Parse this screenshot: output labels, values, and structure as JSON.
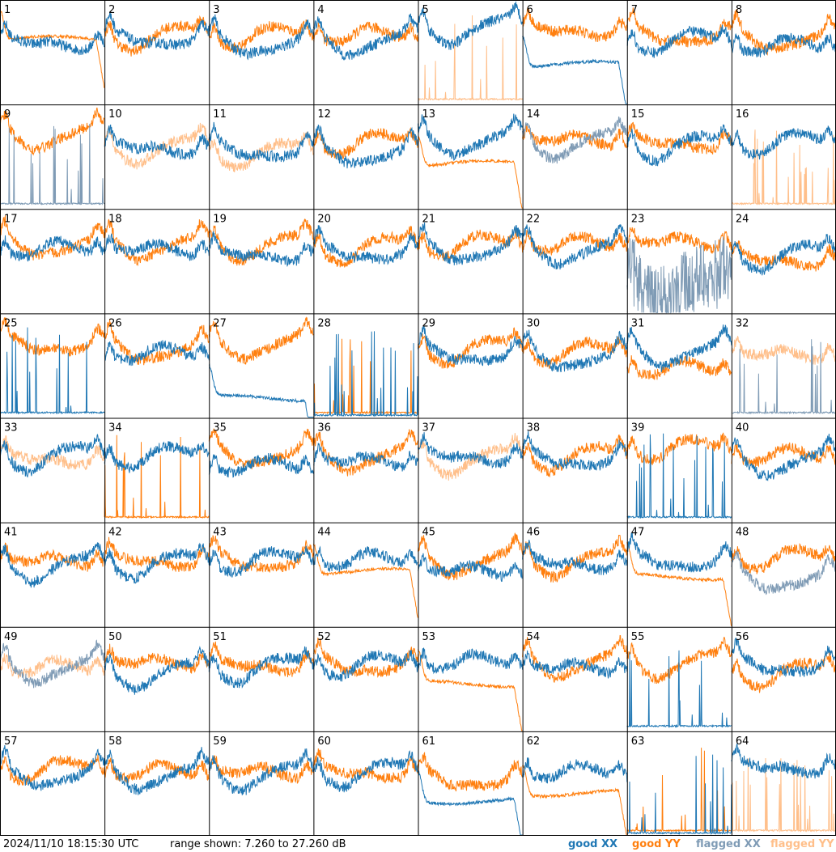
{
  "chart_data": {
    "type": "line",
    "grid": {
      "rows": 8,
      "cols": 8
    },
    "panel_labels": [
      "1",
      "2",
      "3",
      "4",
      "5",
      "6",
      "7",
      "8",
      "9",
      "10",
      "11",
      "12",
      "13",
      "14",
      "15",
      "16",
      "17",
      "18",
      "19",
      "20",
      "21",
      "22",
      "23",
      "24",
      "25",
      "26",
      "27",
      "28",
      "29",
      "30",
      "31",
      "32",
      "33",
      "34",
      "35",
      "36",
      "37",
      "38",
      "39",
      "40",
      "41",
      "42",
      "43",
      "44",
      "45",
      "46",
      "47",
      "48",
      "49",
      "50",
      "51",
      "52",
      "53",
      "54",
      "55",
      "56",
      "57",
      "58",
      "59",
      "60",
      "61",
      "62",
      "63",
      "64"
    ],
    "ylim": [
      7.26,
      27.26
    ],
    "y_unit": "dB",
    "x_points": 240,
    "timestamp": "2024/11/10 18:15:30 UTC",
    "range_text": "range shown: 7.260 to 27.260 dB",
    "legend": [
      {
        "label": "good XX",
        "color": "#1f77b4"
      },
      {
        "label": "good YY",
        "color": "#ff7f0e"
      },
      {
        "label": "flagged XX",
        "color": "#7f9bb5"
      },
      {
        "label": "flagged YY",
        "color": "#ffbf8a"
      }
    ],
    "series_flags": {
      "XX": [
        "good",
        "good",
        "good",
        "good",
        "good",
        "good",
        "good",
        "good",
        "flagged",
        "good",
        "good",
        "good",
        "good",
        "flagged",
        "good",
        "good",
        "good",
        "good",
        "good",
        "good",
        "good",
        "good",
        "flagged",
        "good",
        "good",
        "good",
        "good",
        "good",
        "good",
        "good",
        "good",
        "flagged",
        "good",
        "good",
        "good",
        "good",
        "good",
        "good",
        "good",
        "good",
        "good",
        "good",
        "good",
        "good",
        "good",
        "good",
        "good",
        "flagged",
        "flagged",
        "good",
        "good",
        "good",
        "good",
        "good",
        "good",
        "good",
        "good",
        "good",
        "good",
        "good",
        "good",
        "good",
        "good",
        "good"
      ],
      "YY": [
        "good",
        "good",
        "good",
        "good",
        "flagged",
        "good",
        "good",
        "good",
        "good",
        "flagged",
        "flagged",
        "good",
        "good",
        "good",
        "good",
        "flagged",
        "good",
        "good",
        "good",
        "good",
        "good",
        "good",
        "good",
        "good",
        "good",
        "good",
        "good",
        "good",
        "good",
        "good",
        "good",
        "flagged",
        "flagged",
        "good",
        "good",
        "good",
        "flagged",
        "good",
        "good",
        "good",
        "good",
        "good",
        "good",
        "good",
        "good",
        "good",
        "good",
        "good",
        "flagged",
        "good",
        "good",
        "good",
        "good",
        "good",
        "good",
        "good",
        "good",
        "good",
        "good",
        "good",
        "good",
        "good",
        "good",
        "flagged"
      ]
    },
    "series_shape": {
      "XX": [
        "normal",
        "normal",
        "normal",
        "normal",
        "normal",
        "droop",
        "normal",
        "normal",
        "spiky",
        "normal",
        "normal",
        "normal",
        "normal",
        "normal",
        "normal",
        "normal",
        "normal",
        "normal",
        "normal",
        "normal",
        "normal",
        "normal",
        "noisy",
        "normal",
        "spiky",
        "normal",
        "droop",
        "spiky",
        "normal",
        "normal",
        "normal",
        "spiky",
        "normal",
        "normal",
        "normal",
        "normal",
        "normal",
        "normal",
        "spiky",
        "normal",
        "normal",
        "normal",
        "normal",
        "normal",
        "normal",
        "normal",
        "normal",
        "normal",
        "normal",
        "normal",
        "normal",
        "normal",
        "normal",
        "normal",
        "spiky",
        "normal",
        "normal",
        "normal",
        "normal",
        "normal",
        "droop",
        "normal",
        "spiky",
        "normal"
      ],
      "YY": [
        "droop",
        "normal",
        "normal",
        "normal",
        "spiky",
        "normal",
        "normal",
        "normal",
        "normal",
        "normal",
        "normal",
        "normal",
        "droop",
        "normal",
        "normal",
        "spiky",
        "normal",
        "normal",
        "normal",
        "normal",
        "normal",
        "normal",
        "normal",
        "normal",
        "normal",
        "normal",
        "normal",
        "spiky",
        "normal",
        "normal",
        "normal",
        "normal",
        "normal",
        "spiky",
        "normal",
        "normal",
        "normal",
        "normal",
        "normal",
        "normal",
        "normal",
        "normal",
        "normal",
        "droop",
        "normal",
        "normal",
        "droop",
        "normal",
        "normal",
        "normal",
        "normal",
        "normal",
        "droop",
        "normal",
        "normal",
        "normal",
        "normal",
        "normal",
        "normal",
        "normal",
        "normal",
        "droop",
        "spiky",
        "spiky"
      ]
    },
    "series_level_db": {
      "XX": [
        19.5,
        20.5,
        19.5,
        20,
        22.5,
        15,
        20,
        19,
        8,
        19.5,
        19,
        18.5,
        21,
        20.5,
        20,
        20.5,
        20,
        20,
        19,
        19.5,
        20,
        20,
        13,
        19,
        8,
        20,
        11,
        7.5,
        20,
        19.5,
        20.5,
        8,
        20.5,
        20.5,
        18.5,
        19.5,
        20.5,
        20,
        8,
        19.5,
        19.5,
        20,
        20.5,
        20.5,
        18.5,
        20,
        20.5,
        17,
        20,
        19,
        20,
        20.5,
        21,
        20,
        8,
        20.5,
        19.5,
        19.5,
        19.5,
        20,
        14,
        20,
        7.5,
        21
      ],
      "YY": [
        20,
        21,
        21,
        21,
        8,
        22,
        21,
        20.5,
        22,
        19.5,
        18.5,
        20.5,
        16,
        21,
        20.5,
        8,
        21,
        21,
        21,
        20.5,
        21,
        21,
        21.5,
        18,
        22,
        21,
        22,
        8,
        21,
        20.5,
        17,
        20,
        20,
        8,
        21,
        20.5,
        20,
        20.5,
        22,
        20.5,
        20.5,
        20.5,
        20.5,
        18,
        20.5,
        20.5,
        17,
        21,
        20,
        21,
        20.5,
        20.5,
        16.5,
        21,
        21,
        19,
        20.5,
        20,
        20,
        20,
        18.5,
        15.5,
        8,
        8
      ]
    }
  }
}
